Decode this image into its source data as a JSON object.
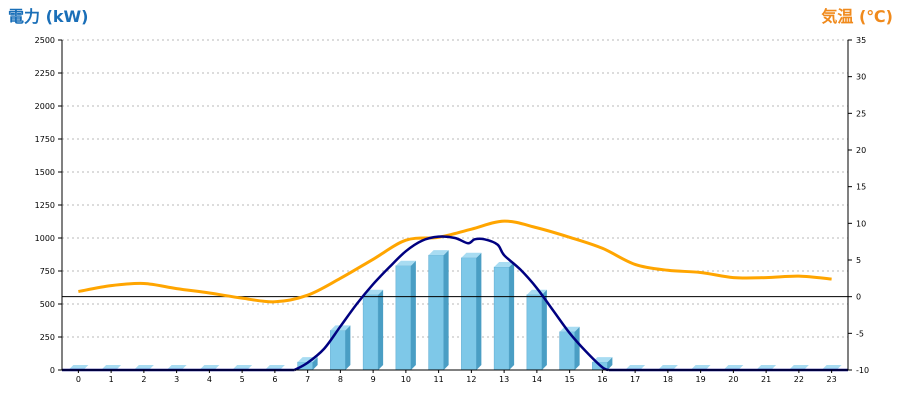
{
  "chart_data": {
    "type": "bar",
    "left_axis_title": "電力 (kW)",
    "right_axis_title": "気温 (℃)",
    "categories": [
      "0",
      "1",
      "2",
      "3",
      "4",
      "5",
      "6",
      "7",
      "8",
      "9",
      "10",
      "11",
      "12",
      "13",
      "14",
      "15",
      "16",
      "17",
      "18",
      "19",
      "20",
      "21",
      "22",
      "23"
    ],
    "ylim_left": [
      0,
      2500
    ],
    "yticks_left": [
      "0",
      "250",
      "500",
      "750",
      "1000",
      "1250",
      "1500",
      "1750",
      "2000",
      "2250",
      "2500"
    ],
    "ylim_right": [
      -10,
      35
    ],
    "yticks_right": [
      "-10",
      "-5",
      "0",
      "5",
      "10",
      "15",
      "20",
      "25",
      "30",
      "35"
    ],
    "grid": "horizontal dotted",
    "bar_series": {
      "values": [
        0,
        0,
        0,
        0,
        0,
        0,
        0,
        60,
        300,
        570,
        790,
        870,
        850,
        780,
        570,
        290,
        60,
        0,
        0,
        0,
        0,
        0,
        0,
        0
      ]
    },
    "power_line": {
      "points": [
        [
          6.6,
          0
        ],
        [
          7,
          55
        ],
        [
          7.5,
          160
        ],
        [
          8,
          330
        ],
        [
          8.5,
          500
        ],
        [
          9,
          650
        ],
        [
          9.5,
          780
        ],
        [
          10,
          900
        ],
        [
          10.5,
          980
        ],
        [
          11,
          1010
        ],
        [
          11.5,
          1000
        ],
        [
          11.9,
          960
        ],
        [
          12.1,
          990
        ],
        [
          12.4,
          990
        ],
        [
          12.8,
          950
        ],
        [
          13,
          870
        ],
        [
          13.5,
          760
        ],
        [
          14,
          620
        ],
        [
          14.5,
          450
        ],
        [
          15,
          280
        ],
        [
          15.5,
          140
        ],
        [
          16,
          20
        ],
        [
          16.2,
          0
        ]
      ]
    },
    "temperature_line": {
      "values": [
        0.7,
        1.5,
        1.8,
        1.1,
        0.5,
        -0.2,
        -0.7,
        0.2,
        2.5,
        5.1,
        7.7,
        8.1,
        9.2,
        10.3,
        9.4,
        8.1,
        6.6,
        4.4,
        3.6,
        3.3,
        2.6,
        2.6,
        2.8,
        2.4
      ]
    },
    "colors": {
      "title_left": "#1a6fb8",
      "title_right": "#f08a1c",
      "bar_front": "#7ec8e8",
      "bar_side": "#4a9ec4",
      "bar_top": "#a8dcf2",
      "power_line": "#000080",
      "temperature_line": "#ffa500",
      "grid": "#b8b8b8"
    }
  }
}
